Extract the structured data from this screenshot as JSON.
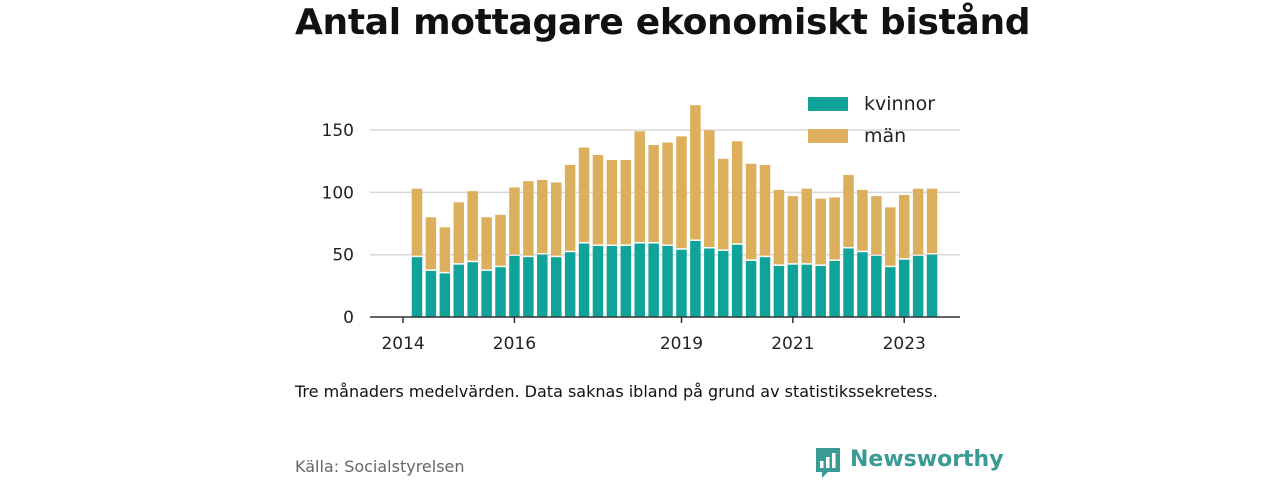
{
  "chart_data": {
    "type": "bar",
    "stacked": true,
    "title": "Antal mottagare ekonomiskt bistånd",
    "xlabel": "",
    "ylabel": "",
    "ylim": [
      0,
      175
    ],
    "yticks": [
      0,
      50,
      100,
      150
    ],
    "xtick_labels": [
      {
        "label": "2014",
        "index": -1
      },
      {
        "label": "2016",
        "index": 7
      },
      {
        "label": "2019",
        "index": 19
      },
      {
        "label": "2021",
        "index": 27
      },
      {
        "label": "2023",
        "index": 35
      }
    ],
    "grid": "horizontal",
    "legend_position": "top-right",
    "series": [
      {
        "name": "kvinnor",
        "color": "#10a39a",
        "values": [
          48,
          37,
          35,
          42,
          44,
          37,
          40,
          49,
          48,
          50,
          48,
          52,
          59,
          57,
          57,
          57,
          59,
          59,
          57,
          54,
          61,
          55,
          53,
          58,
          45,
          48,
          41,
          42,
          42,
          41,
          45,
          55,
          52,
          49,
          40,
          46,
          49,
          50
        ]
      },
      {
        "name": "män",
        "color": "#dcaf5c",
        "values": [
          55,
          43,
          37,
          50,
          57,
          43,
          42,
          55,
          61,
          60,
          60,
          70,
          77,
          73,
          69,
          69,
          90,
          79,
          83,
          91,
          109,
          95,
          74,
          83,
          78,
          74,
          61,
          55,
          61,
          54,
          51,
          59,
          50,
          48,
          48,
          52,
          54,
          53
        ]
      }
    ]
  },
  "note": "Tre månaders medelvärden. Data saknas ibland på grund av statistikssekretess.",
  "source": "Källa: Socialstyrelsen",
  "brand": {
    "name": "Newsworthy",
    "icon": "bar-chart-speech-bubble-icon",
    "color": "#3a9a94"
  }
}
